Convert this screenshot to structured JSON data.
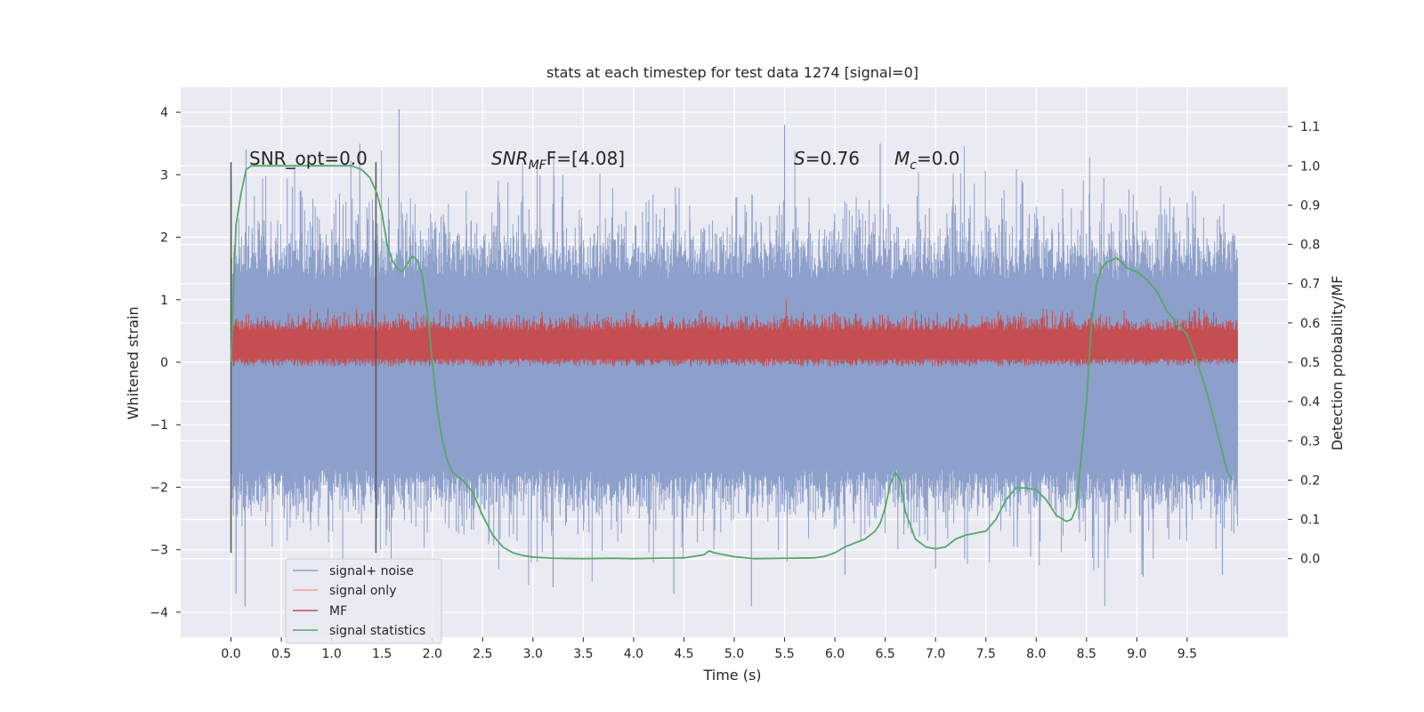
{
  "chart_data": {
    "type": "line",
    "title": "stats at each timestep for test data 1274 [signal=0]",
    "xlabel": "Time (s)",
    "ylabel": "Whitened strain",
    "y2label": "Detection probability/MF",
    "xlim": [
      -0.5,
      10.5
    ],
    "ylim": [
      -4.4,
      4.4
    ],
    "y2lim": [
      -0.2,
      1.2
    ],
    "x_ticks": [
      0.0,
      0.5,
      1.0,
      1.5,
      2.0,
      2.5,
      3.0,
      3.5,
      4.0,
      4.5,
      5.0,
      5.5,
      6.0,
      6.5,
      7.0,
      7.5,
      8.0,
      8.5,
      9.0,
      9.5
    ],
    "x_tick_labels": [
      "0.0",
      "0.5",
      "1.0",
      "1.5",
      "2.0",
      "2.5",
      "3.0",
      "3.5",
      "4.0",
      "4.5",
      "5.0",
      "5.5",
      "6.0",
      "6.5",
      "7.0",
      "7.5",
      "8.0",
      "8.5",
      "9.0",
      "9.5"
    ],
    "y_ticks": [
      -4,
      -3,
      -2,
      -1,
      0,
      1,
      2,
      3,
      4
    ],
    "y_tick_labels": [
      "−4",
      "−3",
      "−2",
      "−1",
      "0",
      "1",
      "2",
      "3",
      "4"
    ],
    "y2_ticks": [
      0.0,
      0.1,
      0.2,
      0.3,
      0.4,
      0.5,
      0.6,
      0.7,
      0.8,
      0.9,
      1.0,
      1.1
    ],
    "y2_tick_labels": [
      "0.0",
      "0.1",
      "0.2",
      "0.3",
      "0.4",
      "0.5",
      "0.6",
      "0.7",
      "0.8",
      "0.9",
      "1.0",
      "1.1"
    ],
    "grid": true,
    "legend_position": "lower-left",
    "annotations": {
      "snr_opt": "SNR_opt=0.0",
      "snr_mf_main": "SNR",
      "snr_mf_sub": "MF",
      "snr_mf_rest": "F=[4.08]",
      "s_main": "S",
      "s_rest": "=0.76",
      "mc_main": "M",
      "mc_sub": "c",
      "mc_rest": "=0.0"
    },
    "vlines": {
      "x": [
        0.0,
        1.44
      ],
      "ymin": -3.05,
      "ymax": 3.2
    },
    "noise_envelope": {
      "x_range": [
        0.0,
        10.0
      ],
      "band_low": -1.7,
      "band_high": 1.3,
      "typical_peak_high": 2.0,
      "typical_peak_low": -2.3,
      "max": 4.05,
      "min": -3.9
    },
    "mf_band": {
      "x_range": [
        0.0,
        10.0
      ],
      "low_prob": 0.49,
      "high_prob": 0.62,
      "center_prob": 0.55
    },
    "series": [
      {
        "name": "signal+ noise",
        "color": "#8da0cb",
        "axis": "left"
      },
      {
        "name": "signal only",
        "color": "#e8a98c",
        "axis": "left"
      },
      {
        "name": "MF",
        "color": "#c44e52",
        "axis": "right"
      },
      {
        "name": "signal statistics",
        "color": "#55a868",
        "axis": "right",
        "x": [
          0.0,
          0.05,
          0.1,
          0.15,
          0.2,
          0.3,
          0.5,
          0.8,
          1.0,
          1.2,
          1.3,
          1.38,
          1.45,
          1.5,
          1.55,
          1.6,
          1.65,
          1.7,
          1.75,
          1.8,
          1.85,
          1.9,
          1.95,
          2.0,
          2.05,
          2.1,
          2.15,
          2.2,
          2.3,
          2.4,
          2.5,
          2.6,
          2.7,
          2.8,
          2.9,
          3.0,
          3.2,
          3.5,
          3.8,
          4.0,
          4.2,
          4.5,
          4.7,
          4.75,
          4.8,
          5.0,
          5.2,
          5.5,
          5.8,
          5.9,
          6.0,
          6.1,
          6.2,
          6.3,
          6.4,
          6.45,
          6.5,
          6.55,
          6.6,
          6.65,
          6.7,
          6.8,
          6.9,
          7.0,
          7.1,
          7.2,
          7.3,
          7.4,
          7.5,
          7.6,
          7.7,
          7.8,
          7.9,
          8.0,
          8.1,
          8.2,
          8.3,
          8.35,
          8.4,
          8.5,
          8.55,
          8.6,
          8.65,
          8.7,
          8.75,
          8.8,
          8.85,
          8.9,
          9.0,
          9.1,
          9.2,
          9.3,
          9.4,
          9.5,
          9.6,
          9.7,
          9.8,
          9.9,
          9.95
        ],
        "y": [
          0.5,
          0.85,
          0.93,
          0.99,
          1.0,
          1.0,
          1.0,
          1.0,
          1.0,
          1.0,
          0.99,
          0.97,
          0.93,
          0.88,
          0.8,
          0.76,
          0.74,
          0.73,
          0.75,
          0.77,
          0.76,
          0.72,
          0.63,
          0.5,
          0.38,
          0.3,
          0.25,
          0.22,
          0.2,
          0.17,
          0.11,
          0.06,
          0.03,
          0.015,
          0.008,
          0.004,
          0.001,
          0.0,
          0.001,
          0.0,
          0.001,
          0.002,
          0.01,
          0.02,
          0.015,
          0.005,
          0.0,
          0.001,
          0.002,
          0.006,
          0.015,
          0.03,
          0.04,
          0.05,
          0.07,
          0.09,
          0.13,
          0.19,
          0.22,
          0.2,
          0.12,
          0.05,
          0.03,
          0.025,
          0.03,
          0.05,
          0.06,
          0.065,
          0.07,
          0.1,
          0.15,
          0.18,
          0.18,
          0.175,
          0.15,
          0.11,
          0.095,
          0.1,
          0.13,
          0.4,
          0.6,
          0.7,
          0.74,
          0.755,
          0.76,
          0.765,
          0.755,
          0.74,
          0.73,
          0.71,
          0.68,
          0.63,
          0.6,
          0.57,
          0.5,
          0.42,
          0.32,
          0.22,
          0.2
        ]
      }
    ]
  }
}
